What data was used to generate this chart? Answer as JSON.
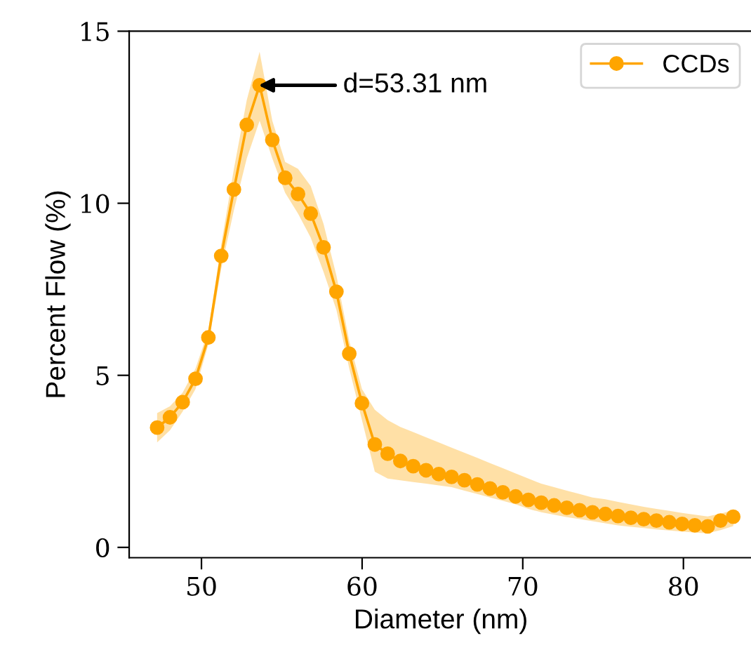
{
  "chart_data": {
    "type": "line",
    "xlabel": "Diameter (nm)",
    "ylabel": "Percent Flow (%)",
    "x": [
      47.24,
      48.04,
      48.83,
      49.63,
      50.43,
      51.23,
      52.02,
      52.82,
      53.62,
      54.41,
      55.21,
      56.01,
      56.8,
      57.6,
      58.4,
      59.2,
      59.99,
      60.79,
      61.59,
      62.38,
      63.18,
      63.98,
      64.77,
      65.57,
      66.37,
      67.17,
      67.96,
      68.76,
      69.56,
      70.35,
      71.15,
      71.95,
      72.74,
      73.54,
      74.34,
      75.14,
      75.93,
      76.73,
      77.53,
      78.32,
      79.12,
      79.92,
      80.71,
      81.51,
      82.31,
      83.1
    ],
    "series": [
      {
        "name": "CCDs",
        "color": "#ffa500",
        "values": [
          3.48,
          3.78,
          4.22,
          4.9,
          6.1,
          8.47,
          10.4,
          12.28,
          13.43,
          11.84,
          10.74,
          10.27,
          9.7,
          8.72,
          7.43,
          5.63,
          4.19,
          2.99,
          2.72,
          2.51,
          2.36,
          2.24,
          2.13,
          2.05,
          1.95,
          1.83,
          1.71,
          1.6,
          1.48,
          1.38,
          1.3,
          1.22,
          1.15,
          1.08,
          1.02,
          0.97,
          0.91,
          0.86,
          0.82,
          0.78,
          0.73,
          0.68,
          0.64,
          0.61,
          0.78,
          0.89
        ],
        "upper": [
          3.9,
          4.1,
          4.5,
          5.2,
          6.3,
          8.8,
          11.0,
          13.0,
          14.4,
          12.4,
          11.2,
          11.0,
          10.5,
          9.4,
          7.9,
          6.0,
          4.6,
          4.0,
          3.7,
          3.5,
          3.35,
          3.2,
          3.05,
          2.9,
          2.75,
          2.6,
          2.45,
          2.3,
          2.15,
          2.0,
          1.85,
          1.75,
          1.65,
          1.55,
          1.45,
          1.4,
          1.32,
          1.25,
          1.18,
          1.12,
          1.06,
          1.0,
          0.95,
          0.9,
          0.98,
          1.08
        ],
        "lower": [
          3.05,
          3.4,
          3.95,
          4.6,
          5.9,
          8.1,
          9.8,
          11.3,
          12.4,
          11.3,
          10.3,
          9.7,
          9.0,
          8.0,
          6.9,
          5.2,
          3.7,
          2.2,
          2.0,
          1.95,
          1.9,
          1.85,
          1.8,
          1.75,
          1.65,
          1.55,
          1.45,
          1.35,
          1.25,
          1.12,
          1.02,
          0.95,
          0.88,
          0.82,
          0.76,
          0.7,
          0.64,
          0.6,
          0.56,
          0.52,
          0.49,
          0.46,
          0.43,
          0.41,
          0.5,
          0.62
        ]
      }
    ],
    "annotations": [
      {
        "text": "d=53.31 nm",
        "x": 53.31,
        "y": 13.43
      }
    ],
    "xlim": [
      45.5,
      84.3
    ],
    "ylim": [
      -0.3,
      15
    ],
    "xticks": [
      50,
      60,
      70,
      80
    ],
    "yticks": [
      0,
      5,
      10,
      15
    ],
    "marker": "circle",
    "line_style": "solid",
    "grid": false,
    "legend": "top right"
  }
}
